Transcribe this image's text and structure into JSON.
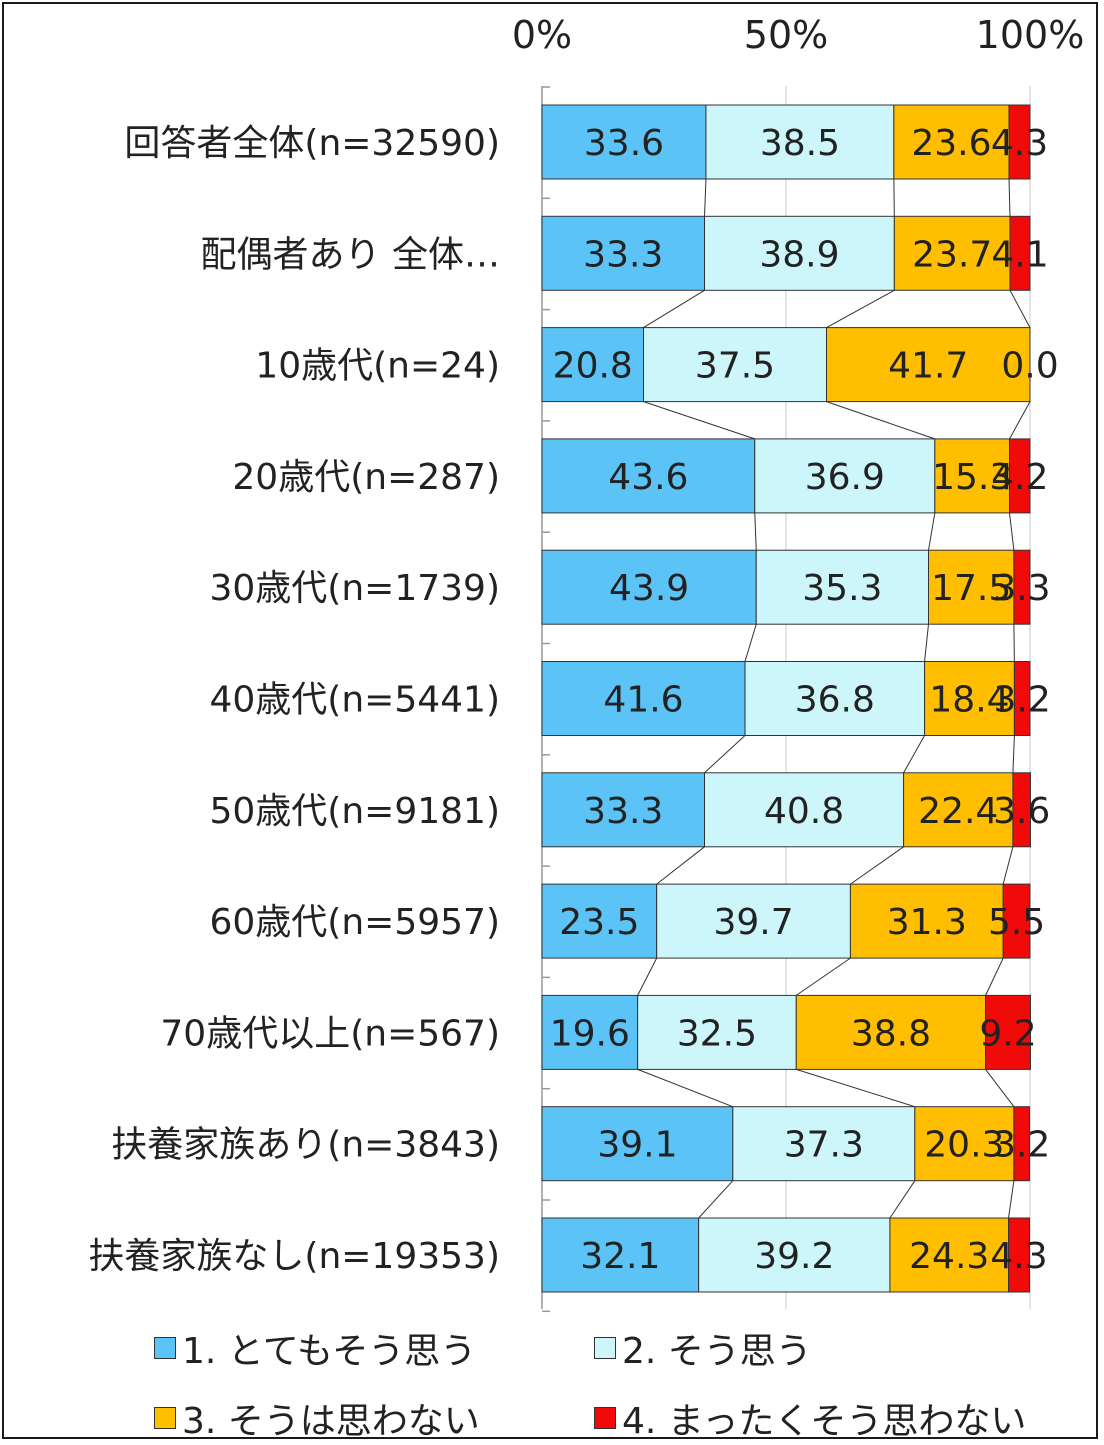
{
  "chart_data": {
    "type": "bar",
    "orientation": "horizontal",
    "stacked": true,
    "percent": true,
    "x_ticks": [
      "0%",
      "50%",
      "100%"
    ],
    "xlim": [
      0,
      100
    ],
    "legend_position": "bottom",
    "grid": true,
    "categories": [
      "回答者全体(n=32590)",
      "配偶者あり 全体…",
      "10歳代(n=24)",
      "20歳代(n=287)",
      "30歳代(n=1739)",
      "40歳代(n=5441)",
      "50歳代(n=9181)",
      "60歳代(n=5957)",
      "70歳代以上(n=567)",
      "扶養家族あり(n=3843)",
      "扶養家族なし(n=19353)"
    ],
    "series": [
      {
        "name": "1. とてもそう思う",
        "color": "#5bc3f5",
        "values": [
          33.6,
          33.3,
          20.8,
          43.6,
          43.9,
          41.6,
          33.3,
          23.5,
          19.6,
          39.1,
          32.1
        ]
      },
      {
        "name": "2. そう思う",
        "color": "#ccf6fa",
        "values": [
          38.5,
          38.9,
          37.5,
          36.9,
          35.3,
          36.8,
          40.8,
          39.7,
          32.5,
          37.3,
          39.2
        ]
      },
      {
        "name": "3. そうは思わない",
        "color": "#ffbe00",
        "values": [
          23.6,
          23.7,
          41.7,
          15.3,
          17.5,
          18.4,
          22.4,
          31.3,
          38.8,
          20.3,
          24.3
        ]
      },
      {
        "name": "4. まったくそう思わない",
        "color": "#f00a0a",
        "values": [
          4.3,
          4.1,
          0.0,
          4.2,
          3.3,
          3.2,
          3.6,
          5.5,
          9.2,
          3.2,
          4.3
        ]
      }
    ]
  }
}
